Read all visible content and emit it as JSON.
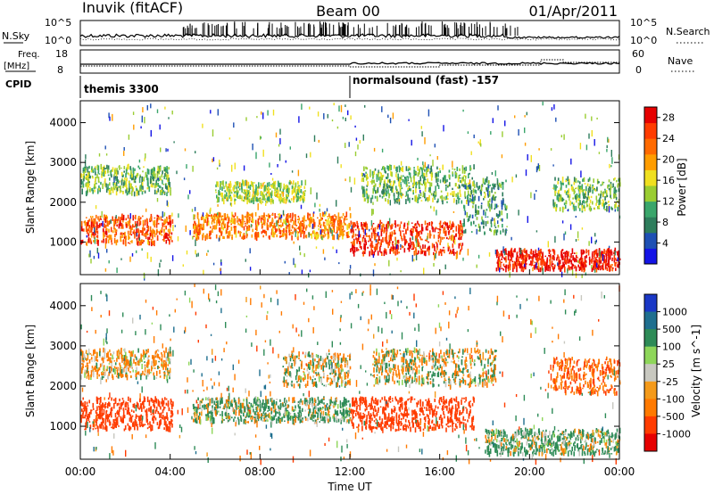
{
  "header": {
    "station": "Inuvik (fitACF)",
    "beam": "Beam 00",
    "date": "01/Apr/2011"
  },
  "top_panel": {
    "left_label": "N.Sky",
    "right_label": "N.Search",
    "left_ticks": [
      "10^5",
      "10^0"
    ],
    "right_ticks": [
      "10^5",
      "10^0"
    ]
  },
  "freq_panel": {
    "left_label": "Freq.",
    "left_unit": "[MHz]",
    "left_ticks": [
      "18",
      "8"
    ],
    "right_label": "Nave",
    "right_ticks": [
      "60",
      "0"
    ]
  },
  "cpid": {
    "label": "CPID",
    "segments": [
      {
        "name": "themis 3300",
        "start_hour": 0
      },
      {
        "name": "normalsound (fast) -157",
        "start_hour": 12
      }
    ]
  },
  "x_axis": {
    "label": "Time UT",
    "ticks": [
      "00:00",
      "04:00",
      "08:00",
      "12:00",
      "16:00",
      "20:00",
      "00:00"
    ],
    "range_hours": [
      0,
      24
    ]
  },
  "colors": {
    "power_scale": [
      "#1414e6",
      "#1e50b4",
      "#2e7d5c",
      "#3aa66b",
      "#9acd32",
      "#f0e020",
      "#ff9d00",
      "#ff6a00",
      "#ff3c00",
      "#e60000"
    ],
    "velocity_scale": [
      "#1a38c6",
      "#1f6f8f",
      "#2e8b57",
      "#8ed65a",
      "#c8c8c0",
      "#f49a1a",
      "#ff7a00",
      "#ff3c00",
      "#e60000"
    ]
  },
  "chart_data": [
    {
      "type": "heatmap",
      "title": "",
      "xlabel": "",
      "ylabel": "Slant Range [km]",
      "ylim": [
        180,
        4550
      ],
      "yticks": [
        "1000",
        "2000",
        "3000",
        "4000"
      ],
      "colorbar": {
        "label": "Power [dB]",
        "ticks": [
          "4",
          "8",
          "12",
          "16",
          "20",
          "24",
          "28"
        ],
        "range": [
          0,
          30
        ]
      },
      "series": [
        {
          "x_hours": [
            0,
            4.1
          ],
          "range_km": [
            950,
            1650
          ],
          "value_db": 24
        },
        {
          "x_hours": [
            0,
            4.0
          ],
          "range_km": [
            2200,
            2900
          ],
          "value_db": 12
        },
        {
          "x_hours": [
            5.0,
            12.0
          ],
          "range_km": [
            1100,
            1700
          ],
          "value_db": 22
        },
        {
          "x_hours": [
            6.0,
            10.0
          ],
          "range_km": [
            2000,
            2500
          ],
          "value_db": 14
        },
        {
          "x_hours": [
            12.0,
            17.0
          ],
          "range_km": [
            700,
            1500
          ],
          "value_db": 26
        },
        {
          "x_hours": [
            12.5,
            17.5
          ],
          "range_km": [
            2000,
            2900
          ],
          "value_db": 12
        },
        {
          "x_hours": [
            17.0,
            19.0
          ],
          "range_km": [
            1200,
            2600
          ],
          "value_db": 10
        },
        {
          "x_hours": [
            18.5,
            24.0
          ],
          "range_km": [
            300,
            800
          ],
          "value_db": 28
        },
        {
          "x_hours": [
            21.0,
            24.0
          ],
          "range_km": [
            1800,
            2600
          ],
          "value_db": 12
        }
      ]
    },
    {
      "type": "heatmap",
      "title": "",
      "xlabel": "Time UT",
      "ylabel": "Slant Range [km]",
      "ylim": [
        180,
        4550
      ],
      "yticks": [
        "1000",
        "2000",
        "3000",
        "4000"
      ],
      "colorbar": {
        "label": "Velocity [m s^-1]",
        "ticks": [
          "1000",
          "500",
          "100",
          "25",
          "-25",
          "-100",
          "-500",
          "-1000"
        ]
      },
      "series": [
        {
          "x_hours": [
            0,
            4.1
          ],
          "range_km": [
            900,
            1700
          ],
          "value_ms": -500
        },
        {
          "x_hours": [
            0,
            4.0
          ],
          "range_km": [
            2200,
            2900
          ],
          "value_ms": -100
        },
        {
          "x_hours": [
            5.0,
            12.0
          ],
          "range_km": [
            1100,
            1700
          ],
          "value_ms": 100
        },
        {
          "x_hours": [
            9.0,
            12.0
          ],
          "range_km": [
            2000,
            2800
          ],
          "value_ms": 0
        },
        {
          "x_hours": [
            12.0,
            17.5
          ],
          "range_km": [
            900,
            1700
          ],
          "value_ms": -500
        },
        {
          "x_hours": [
            13.0,
            18.5
          ],
          "range_km": [
            2000,
            2900
          ],
          "value_ms": 0
        },
        {
          "x_hours": [
            18.0,
            24.0
          ],
          "range_km": [
            300,
            900
          ],
          "value_ms": 100
        },
        {
          "x_hours": [
            21.0,
            24.0
          ],
          "range_km": [
            1800,
            2700
          ],
          "value_ms": -300
        }
      ]
    }
  ]
}
